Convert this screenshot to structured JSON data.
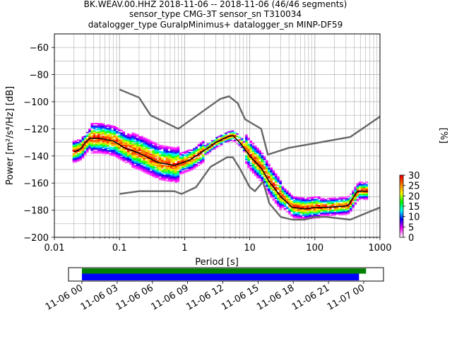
{
  "chart_data": {
    "type": "heatmap",
    "title": [
      "BK.WEAV.00.HHZ   2018-11-06 -- 2018-11-06  (46/46 segments)",
      "sensor_type CMG-3T sensor_sn T310034",
      "datalogger_type GuralpMinimus+ datalogger_sn MINP-DF59"
    ],
    "xlabel": "Period [s]",
    "ylabel": "Power [m²/s⁴/Hz] [dB]",
    "x_scale": "log",
    "xlim": [
      0.01,
      1000
    ],
    "ylim": [
      -200,
      -50
    ],
    "x_ticks": [
      "0.01",
      "0.1",
      "1",
      "10",
      "100",
      "1000"
    ],
    "y_ticks": [
      "−200",
      "−180",
      "−160",
      "−140",
      "−120",
      "−100",
      "−80",
      "−60"
    ],
    "grid": true,
    "colorbar": {
      "label": "[%]",
      "min": 0,
      "max": 30,
      "ticks": [
        "0",
        "5",
        "10",
        "15",
        "20",
        "25",
        "30"
      ]
    },
    "series": [
      {
        "name": "",
        "points": [
          [
            0.1,
            -91
          ],
          [
            0.2,
            -97
          ],
          [
            0.3,
            -110
          ],
          [
            0.8,
            -120
          ],
          [
            3.5,
            -98
          ],
          [
            4.8,
            -96
          ],
          [
            6.5,
            -101
          ],
          [
            8.5,
            -113
          ],
          [
            15,
            -120
          ],
          [
            19,
            -139
          ],
          [
            40,
            -134
          ],
          [
            120,
            -130
          ],
          [
            350,
            -126
          ],
          [
            1000,
            -111
          ]
        ]
      },
      {
        "name": "",
        "points": [
          [
            0.1,
            -168
          ],
          [
            0.2,
            -166
          ],
          [
            0.7,
            -166
          ],
          [
            0.9,
            -168
          ],
          [
            1.5,
            -163
          ],
          [
            2.5,
            -148
          ],
          [
            4.5,
            -141
          ],
          [
            5.5,
            -141
          ],
          [
            7,
            -149
          ],
          [
            10,
            -163
          ],
          [
            12,
            -166
          ],
          [
            16,
            -159
          ],
          [
            20,
            -175
          ],
          [
            30,
            -185
          ],
          [
            45,
            -187
          ],
          [
            70,
            -187
          ],
          [
            100,
            -185
          ],
          [
            150,
            -185
          ],
          [
            350,
            -187
          ],
          [
            1000,
            -178
          ]
        ]
      },
      {
        "name": "",
        "points": [
          [
            0.02,
            -137
          ],
          [
            0.025,
            -135
          ],
          [
            0.03,
            -130
          ],
          [
            0.035,
            -127
          ],
          [
            0.05,
            -127
          ],
          [
            0.08,
            -129
          ],
          [
            0.12,
            -134
          ],
          [
            0.2,
            -138
          ],
          [
            0.4,
            -145
          ],
          [
            0.7,
            -147
          ],
          [
            1.2,
            -143
          ],
          [
            2,
            -136
          ],
          [
            3,
            -130
          ],
          [
            4.5,
            -126
          ],
          [
            5.5,
            -125
          ],
          [
            7,
            -130
          ],
          [
            10,
            -140
          ],
          [
            15,
            -149
          ],
          [
            20,
            -159
          ],
          [
            30,
            -170
          ],
          [
            45,
            -178
          ],
          [
            70,
            -179
          ],
          [
            100,
            -178
          ],
          [
            150,
            -178
          ],
          [
            300,
            -177
          ],
          [
            330,
            -176
          ],
          [
            450,
            -166
          ],
          [
            650,
            -166
          ]
        ]
      }
    ],
    "time_axis": {
      "ticks": [
        "11-06 00",
        "11-06 03",
        "11-06 06",
        "11-06 09",
        "11-06 12",
        "11-06 15",
        "11-06 18",
        "11-06 21",
        "11-07 00"
      ],
      "coverage_bars": [
        {
          "color": "#008000",
          "start_hour": 0,
          "end_hour": 24.2
        },
        {
          "color": "#0000ff",
          "start_hour": 0,
          "end_hour": 23.6
        }
      ]
    }
  },
  "colors": {
    "reference_model": "#666666",
    "mode": "#000000",
    "colormap": [
      "#ffffff",
      "#ff00ff",
      "#0000ff",
      "#00ffff",
      "#00ff00",
      "#ffff00",
      "#ff8000",
      "#ff0000"
    ]
  }
}
